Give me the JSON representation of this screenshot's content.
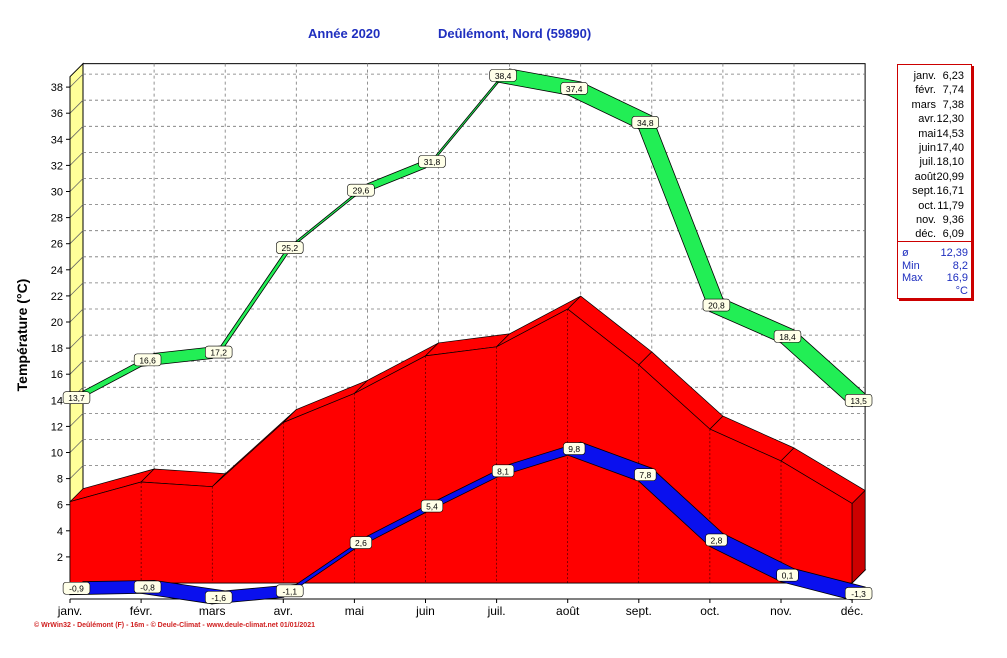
{
  "header": {
    "year_label": "Année  2020",
    "location": "Deûlémont, Nord (59890)"
  },
  "chart_data": {
    "type": "area",
    "title": "Année 2020 — Deûlémont, Nord (59890)",
    "xlabel": "",
    "ylabel": "Température  (°C)",
    "ylim": [
      0,
      39
    ],
    "yticks": [
      2,
      4,
      6,
      8,
      10,
      12,
      14,
      16,
      18,
      20,
      22,
      24,
      26,
      28,
      30,
      32,
      34,
      36,
      38
    ],
    "categories": [
      "janv.",
      "févr.",
      "mars",
      "avr.",
      "mai",
      "juin",
      "juil.",
      "août",
      "sept.",
      "oct.",
      "nov.",
      "déc."
    ],
    "series": [
      {
        "name": "Tmax",
        "color": "#22ee55",
        "values": [
          13.7,
          16.6,
          17.2,
          25.2,
          29.6,
          31.8,
          38.4,
          37.4,
          34.8,
          20.8,
          18.4,
          13.5
        ],
        "labels": [
          "13,7",
          "16,6",
          "17,2",
          "25,2",
          "29,6",
          "31,8",
          "38,4",
          "37,4",
          "34,8",
          "20,8",
          "18,4",
          "13,5"
        ]
      },
      {
        "name": "Tmoy",
        "color": "#ff0000",
        "values": [
          6.23,
          7.74,
          7.38,
          12.3,
          14.53,
          17.4,
          18.1,
          20.99,
          16.71,
          11.79,
          9.36,
          6.09
        ]
      },
      {
        "name": "Tmin",
        "color": "#0a10ee",
        "values": [
          -0.9,
          -0.8,
          -1.6,
          -1.1,
          2.6,
          5.4,
          8.1,
          9.8,
          7.8,
          2.8,
          0.1,
          -1.3
        ],
        "labels": [
          "-0,9",
          "-0,8",
          "-1,6",
          "-1,1",
          "2,6",
          "5,4",
          "8,1",
          "9,8",
          "7,8",
          "2,8",
          "0,1",
          "-1,3"
        ]
      }
    ]
  },
  "legend": {
    "months": [
      {
        "m": "janv.",
        "v": "6,23"
      },
      {
        "m": "févr.",
        "v": "7,74"
      },
      {
        "m": "mars",
        "v": "7,38"
      },
      {
        "m": "avr.",
        "v": "12,30"
      },
      {
        "m": "mai",
        "v": "14,53"
      },
      {
        "m": "juin",
        "v": "17,40"
      },
      {
        "m": "juil.",
        "v": "18,10"
      },
      {
        "m": "août",
        "v": "20,99"
      },
      {
        "m": "sept.",
        "v": "16,71"
      },
      {
        "m": "oct.",
        "v": "11,79"
      },
      {
        "m": "nov.",
        "v": "9,36"
      },
      {
        "m": "déc.",
        "v": "6,09"
      }
    ],
    "stats": [
      {
        "label": "ø",
        "value": "12,39"
      },
      {
        "label": "Min",
        "value": "8,2"
      },
      {
        "label": "Max",
        "value": "16,9"
      },
      {
        "label": "",
        "value": "°C"
      }
    ]
  },
  "colors": {
    "title": "#1f2fbf",
    "wall": "#ffff99",
    "tmax": "#22ee55",
    "tmoy": "#ff0000",
    "tmin": "#0a10ee"
  },
  "footer": "© WrWin32 - Deûlémont (F) - 16m - © Deule-Climat - www.deule-climat.net  01/01/2021"
}
